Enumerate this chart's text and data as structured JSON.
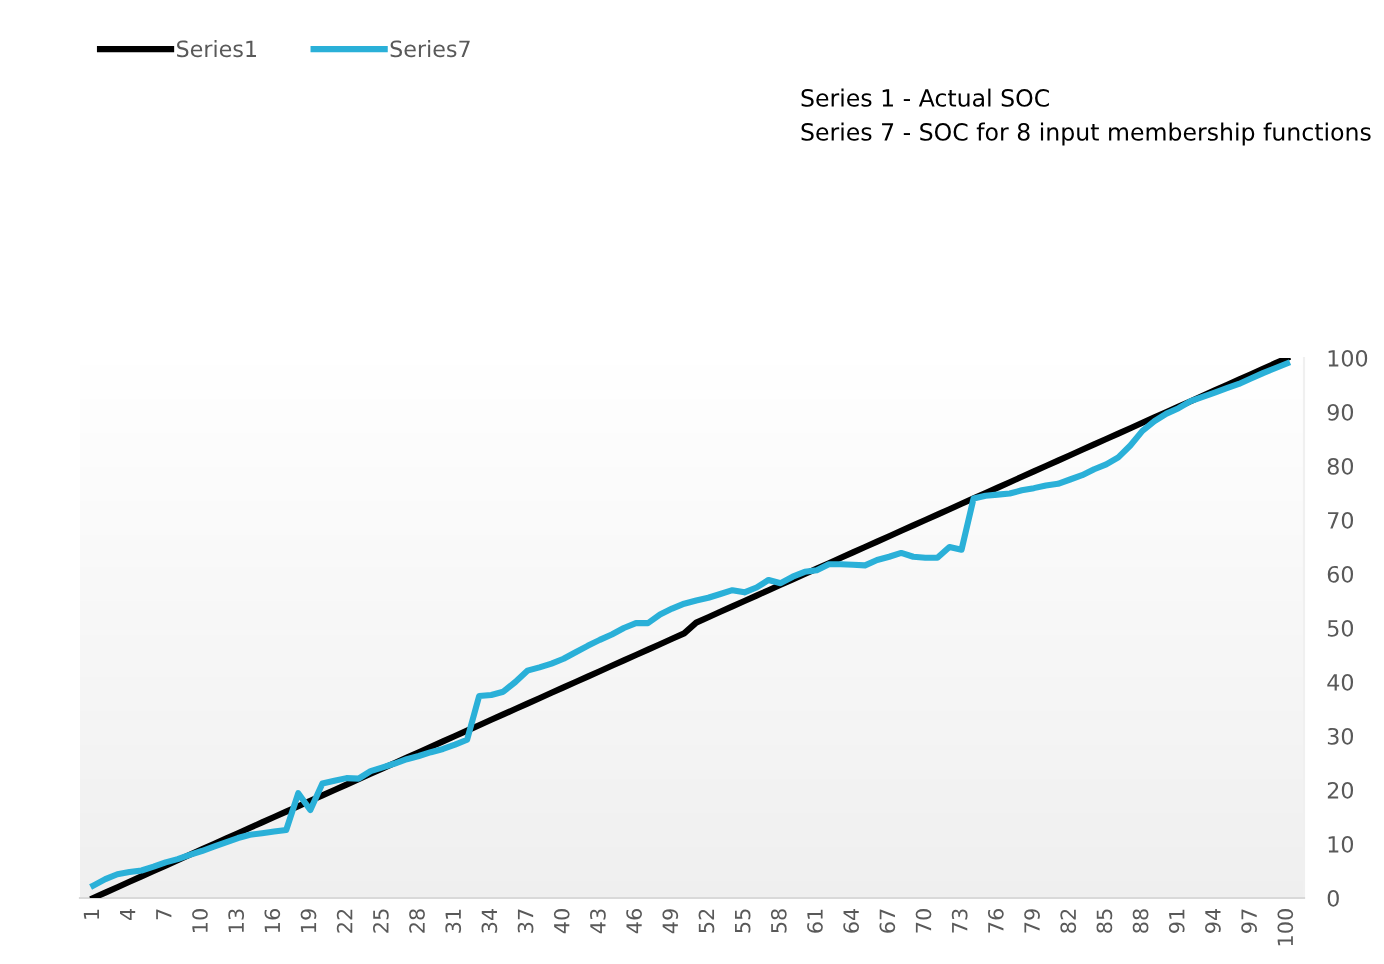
{
  "chart_data": {
    "type": "line",
    "categories": [
      "1",
      null,
      null,
      "4",
      null,
      null,
      "7",
      null,
      null,
      "10",
      null,
      null,
      "13",
      null,
      null,
      "16",
      null,
      null,
      "19",
      null,
      null,
      "22",
      null,
      null,
      "25",
      null,
      null,
      "28",
      null,
      null,
      "31",
      null,
      null,
      "34",
      null,
      null,
      "37",
      null,
      null,
      "40",
      null,
      null,
      "43",
      null,
      null,
      "46",
      null,
      null,
      "49",
      null,
      null,
      "52",
      null,
      null,
      "55",
      null,
      null,
      "58",
      null,
      null,
      "61",
      null,
      null,
      "64",
      null,
      null,
      "67",
      null,
      null,
      "70",
      null,
      null,
      "73",
      null,
      null,
      "76",
      null,
      null,
      "79",
      null,
      null,
      "82",
      null,
      null,
      "85",
      null,
      null,
      "88",
      null,
      null,
      "91",
      null,
      null,
      "94",
      null,
      null,
      "97",
      null,
      null,
      "100"
    ],
    "series": [
      {
        "name": "Series1",
        "color": "#000000",
        "values": [
          0,
          1,
          2,
          3,
          4,
          5,
          6,
          7,
          8,
          9,
          10,
          11,
          12,
          13,
          14,
          15,
          16,
          17,
          18,
          19,
          20,
          21,
          22,
          23,
          24,
          25,
          26,
          27,
          28,
          29,
          30,
          31,
          32,
          33,
          34,
          35,
          36,
          37,
          38,
          39,
          40,
          41,
          42,
          43,
          44,
          45,
          46,
          47,
          48,
          49,
          51,
          52,
          53,
          54,
          55,
          56,
          57,
          58,
          59,
          60,
          61,
          62,
          63,
          64,
          65,
          66,
          67,
          68,
          69,
          70,
          71,
          72,
          73,
          74,
          75,
          76,
          77,
          78,
          79,
          80,
          81,
          82,
          83,
          84,
          85,
          86,
          87,
          88,
          89,
          90,
          91,
          92,
          93,
          94,
          95,
          96,
          97,
          98,
          99,
          100
        ]
      },
      {
        "name": "Series7",
        "color": "#2ab0d8",
        "values": [
          2.3,
          3.5,
          4.4,
          4.8,
          5.1,
          5.8,
          6.6,
          7.2,
          8.0,
          8.7,
          9.5,
          10.3,
          11.1,
          11.7,
          12.0,
          12.3,
          12.6,
          19.4,
          16.3,
          21.2,
          21.7,
          22.2,
          22.1,
          23.5,
          24.2,
          24.9,
          25.7,
          26.3,
          27.0,
          27.6,
          28.4,
          29.3,
          37.4,
          37.6,
          38.2,
          40.0,
          42.1,
          42.7,
          43.4,
          44.3,
          45.5,
          46.7,
          47.8,
          48.8,
          50.0,
          50.9,
          50.9,
          52.5,
          53.6,
          54.5,
          55.1,
          55.6,
          56.3,
          57.0,
          56.6,
          57.5,
          58.9,
          58.3,
          59.5,
          60.4,
          60.7,
          61.8,
          61.8,
          61.7,
          61.6,
          62.6,
          63.2,
          63.9,
          63.2,
          63.0,
          63.0,
          65.0,
          64.5,
          74.0,
          74.5,
          74.7,
          74.9,
          75.5,
          75.9,
          76.4,
          76.7,
          77.5,
          78.3,
          79.4,
          80.3,
          81.6,
          83.8,
          86.5,
          88.3,
          89.7,
          90.7,
          92.0,
          92.8,
          93.6,
          94.4,
          95.2,
          96.2,
          97.2,
          98.1,
          99.0
        ]
      }
    ],
    "ylim": [
      0,
      100
    ],
    "yticks": [
      0,
      10,
      20,
      30,
      40,
      50,
      60,
      70,
      80,
      90,
      100
    ],
    "grid": false,
    "legend": "top left",
    "marker": "none",
    "line_style": "solid",
    "annotations": [
      "Series 1 - Actual SOC",
      "Series 7 - SOC for 8 input membership functions"
    ]
  }
}
